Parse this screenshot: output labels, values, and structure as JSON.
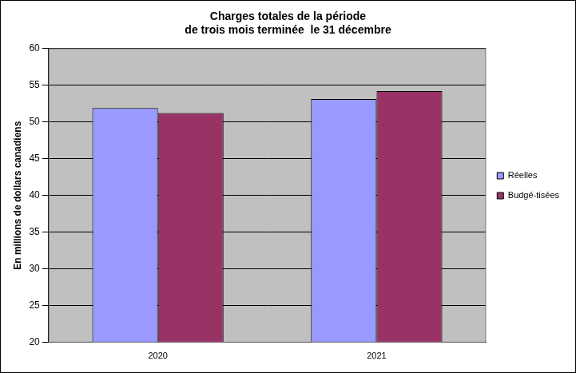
{
  "chart_data": {
    "type": "bar",
    "title": [
      "Charges totales de la période",
      "de trois mois terminée  le 31 décembre"
    ],
    "y_label": "En millions de dollars canadiens",
    "categories": [
      "2020",
      "2021"
    ],
    "series": [
      {
        "name": "Réelles",
        "color": "#9999ff",
        "values": [
          51.9,
          53.1
        ]
      },
      {
        "name": "Budgé-tisées",
        "color": "#993366",
        "values": [
          51.2,
          54.2
        ]
      }
    ],
    "ylim": [
      20,
      60
    ],
    "yticks": [
      20,
      25,
      30,
      35,
      40,
      45,
      50,
      55,
      60
    ],
    "grid": true,
    "legend": "right"
  }
}
